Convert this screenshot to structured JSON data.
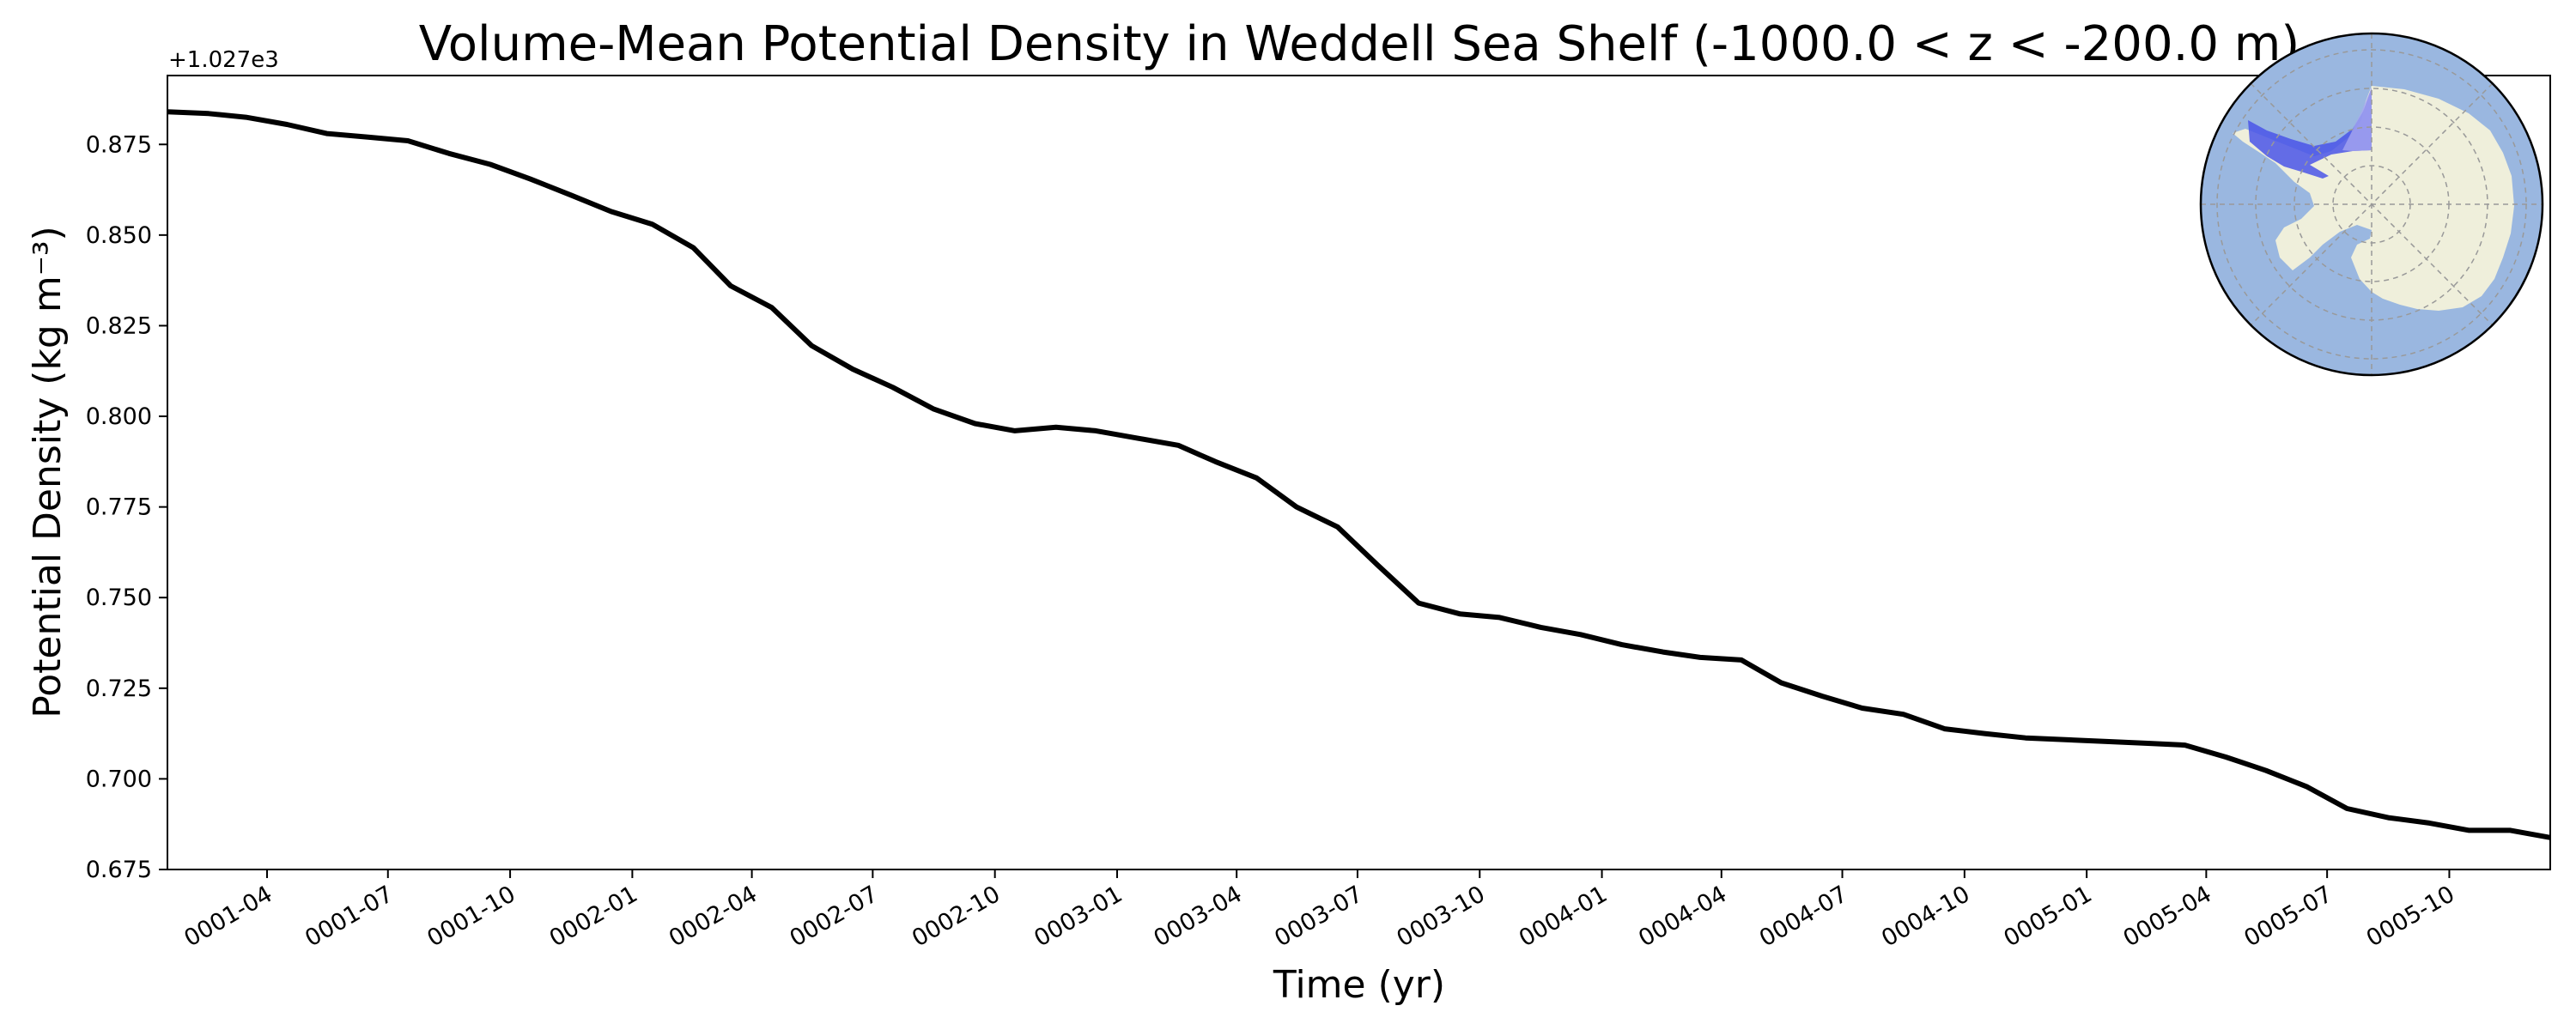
{
  "chart_data": {
    "type": "line",
    "title": "Volume-Mean Potential Density in Weddell Sea Shelf (-1000.0 < z < -200.0 m)",
    "xlabel": "Time (yr)",
    "ylabel": "Potential Density (kg m⁻³)",
    "y_offset_text": "+1.027e3",
    "xlim": [
      "0001-01-16",
      "0005-12-16"
    ],
    "ylim": [
      0.675,
      0.894
    ],
    "yticks": [
      0.675,
      0.7,
      0.725,
      0.75,
      0.775,
      0.8,
      0.825,
      0.85,
      0.875
    ],
    "ytick_labels": [
      "0.675",
      "0.700",
      "0.725",
      "0.750",
      "0.775",
      "0.800",
      "0.825",
      "0.850",
      "0.875"
    ],
    "xticks": [
      "0001-04",
      "0001-07",
      "0001-10",
      "0002-01",
      "0002-04",
      "0002-07",
      "0002-10",
      "0003-01",
      "0003-04",
      "0003-07",
      "0003-10",
      "0004-01",
      "0004-04",
      "0004-07",
      "0004-10",
      "0005-01",
      "0005-04",
      "0005-07",
      "0005-10"
    ],
    "grid": false,
    "series": [
      {
        "color": "#000000",
        "x": [
          "0001-01",
          "0001-02",
          "0001-03",
          "0001-04",
          "0001-05",
          "0001-06",
          "0001-07",
          "0001-08",
          "0001-09",
          "0001-10",
          "0001-11",
          "0001-12",
          "0002-01",
          "0002-02",
          "0002-03",
          "0002-04",
          "0002-05",
          "0002-06",
          "0002-07",
          "0002-08",
          "0002-09",
          "0002-10",
          "0002-11",
          "0002-12",
          "0003-01",
          "0003-02",
          "0003-03",
          "0003-04",
          "0003-05",
          "0003-06",
          "0003-07",
          "0003-08",
          "0003-09",
          "0003-10",
          "0003-11",
          "0003-12",
          "0004-01",
          "0004-02",
          "0004-03",
          "0004-04",
          "0004-05",
          "0004-06",
          "0004-07",
          "0004-08",
          "0004-09",
          "0004-10",
          "0004-11",
          "0004-12",
          "0005-01",
          "0005-02",
          "0005-03",
          "0005-04",
          "0005-05",
          "0005-06",
          "0005-07",
          "0005-08",
          "0005-09",
          "0005-10",
          "0005-11",
          "0005-12"
        ],
        "values": [
          0.884,
          0.8835,
          0.8825,
          0.8805,
          0.878,
          0.877,
          0.876,
          0.8725,
          0.8695,
          0.8655,
          0.861,
          0.8565,
          0.853,
          0.8465,
          0.836,
          0.83,
          0.8195,
          0.813,
          0.808,
          0.802,
          0.798,
          0.796,
          0.797,
          0.796,
          0.794,
          0.792,
          0.7875,
          0.783,
          0.775,
          0.7695,
          0.759,
          0.7485,
          0.7455,
          0.7445,
          0.7418,
          0.7398,
          0.737,
          0.735,
          0.7335,
          0.7328,
          0.7265,
          0.7228,
          0.7195,
          0.7178,
          0.7138,
          0.7125,
          0.7113,
          0.7108,
          0.7103,
          0.7098,
          0.7093,
          0.706,
          0.7023,
          0.6978,
          0.6918,
          0.6893,
          0.6878,
          0.6858,
          0.6858,
          0.6838
        ]
      }
    ]
  },
  "inset_map": {
    "ocean_color": "#9ab7e0",
    "land_color": "#efefdb",
    "region_fill": "#4a55e8",
    "region_overlay_fill": "#a8a8f0",
    "border_color": "#000000",
    "grid_color": "#999999"
  }
}
